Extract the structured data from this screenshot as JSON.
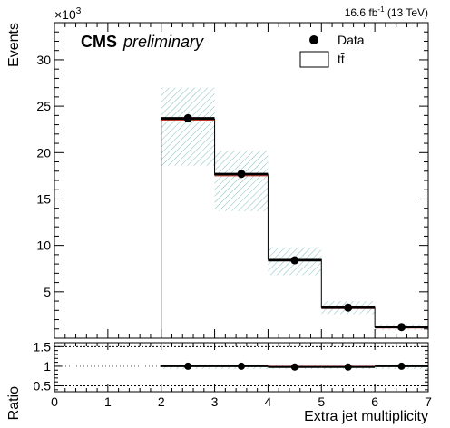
{
  "chart_data": [
    {
      "type": "histogram",
      "title": "",
      "experiment_label": "CMS",
      "status_label": "preliminary",
      "lumi_label": "16.6 fb",
      "lumi_exponent": "-1",
      "energy_label": " (13 TeV)",
      "ylabel": "Events",
      "yscale_prefix": "×10",
      "yscale_exponent": "3",
      "xlim": [
        0,
        7
      ],
      "ylim": [
        0,
        34
      ],
      "yticks": [
        5,
        10,
        15,
        20,
        25,
        30
      ],
      "bins": [
        [
          2,
          3
        ],
        [
          3,
          4
        ],
        [
          4,
          5
        ],
        [
          5,
          6
        ],
        [
          6,
          7
        ]
      ],
      "series": [
        {
          "name": "Data",
          "kind": "points",
          "x": [
            2.5,
            3.5,
            4.5,
            5.5,
            6.5
          ],
          "values": [
            23.7,
            17.7,
            8.4,
            3.3,
            1.2
          ]
        },
        {
          "name": "tt̄",
          "kind": "histogram",
          "values": [
            23.6,
            17.6,
            8.5,
            3.3,
            1.2
          ],
          "uncertainty_band": [
            [
              18.6,
              27.0
            ],
            [
              13.7,
              20.2
            ],
            [
              6.8,
              9.8
            ],
            [
              2.6,
              4.0
            ],
            [
              0.9,
              1.5
            ]
          ]
        }
      ],
      "legend_position": "top-right"
    },
    {
      "type": "scatter",
      "ylabel": "Ratio",
      "xlabel": "Extra jet multiplicity",
      "xlim": [
        0,
        7
      ],
      "ylim": [
        0.35,
        1.6
      ],
      "yticks": [
        0.5,
        1,
        1.5
      ],
      "ytick_labels": [
        "0.5",
        "1",
        "1.5"
      ],
      "xticks": [
        0,
        1,
        2,
        3,
        4,
        5,
        6,
        7
      ],
      "xtick_labels": [
        "0",
        "1",
        "2",
        "3",
        "4",
        "5",
        "6",
        "7"
      ],
      "reference_lines": [
        0.5,
        1.5
      ],
      "series": [
        {
          "name": "",
          "x": [
            2.5,
            3.5,
            4.5,
            5.5,
            6.5
          ],
          "values": [
            1.0,
            1.0,
            0.98,
            0.98,
            1.0
          ],
          "uncertainty_band": [
            [
              0.93,
              1.04
            ],
            [
              0.93,
              1.04
            ],
            [
              0.93,
              1.04
            ],
            [
              0.93,
              1.04
            ],
            [
              0.93,
              1.04
            ]
          ]
        }
      ]
    }
  ],
  "colors": {
    "data_marker": "#000000",
    "histogram_line": "#000000",
    "band_hatch": "#7fbfbd",
    "frame": "#000000",
    "background": "#ffffff"
  }
}
